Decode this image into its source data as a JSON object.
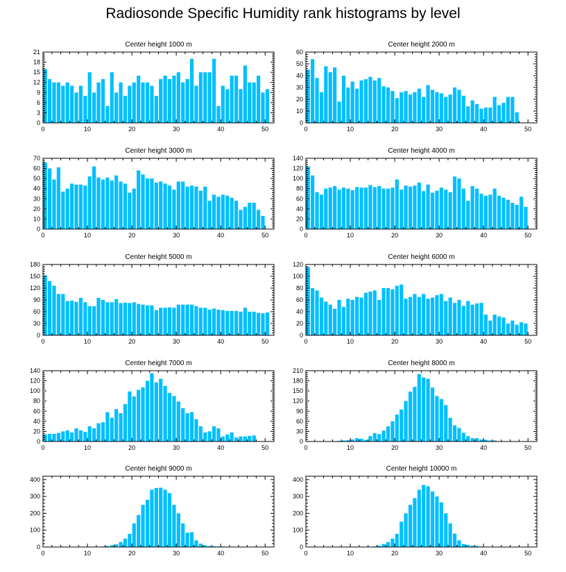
{
  "figure": {
    "title": "Radiosonde Specific Humidity rank histograms by level",
    "bar_color": "#00BFFF"
  },
  "chart_data": [
    {
      "type": "bar",
      "title": "Center height 1000 m",
      "x_start": 0,
      "xlim": [
        0,
        52
      ],
      "xticks": [
        0,
        10,
        20,
        30,
        40,
        50
      ],
      "ylim": [
        0,
        21
      ],
      "yticks": [
        0,
        3,
        6,
        9,
        12,
        15,
        18,
        21
      ],
      "values": [
        16,
        13,
        12,
        12,
        11,
        12,
        11,
        9,
        11,
        8,
        15,
        9,
        12,
        13,
        5,
        15,
        9,
        12,
        8,
        11,
        12,
        14,
        12,
        12,
        11,
        8,
        13,
        14,
        13,
        14,
        15,
        12,
        13,
        19,
        11,
        15,
        15,
        15,
        19,
        5,
        11,
        10,
        14,
        14,
        10,
        17,
        12,
        12,
        14,
        9,
        10
      ]
    },
    {
      "type": "bar",
      "title": "Center height 2000 m",
      "x_start": 0,
      "xlim": [
        0,
        52
      ],
      "xticks": [
        0,
        10,
        20,
        30,
        40,
        50
      ],
      "ylim": [
        0,
        60
      ],
      "yticks": [
        0,
        10,
        20,
        30,
        40,
        50,
        60
      ],
      "values": [
        45,
        54,
        38,
        26,
        48,
        43,
        47,
        18,
        40,
        30,
        35,
        29,
        36,
        37,
        39,
        36,
        38,
        31,
        30,
        27,
        21,
        26,
        27,
        24,
        26,
        29,
        22,
        32,
        28,
        26,
        25,
        22,
        24,
        30,
        28,
        23,
        14,
        19,
        16,
        12,
        13,
        13,
        22,
        15,
        17,
        22,
        22,
        9
      ]
    },
    {
      "type": "bar",
      "title": "Center height 3000 m",
      "x_start": 0,
      "xlim": [
        0,
        52
      ],
      "xticks": [
        0,
        10,
        20,
        30,
        40,
        50
      ],
      "ylim": [
        0,
        70
      ],
      "yticks": [
        0,
        10,
        20,
        30,
        40,
        50,
        60,
        70
      ],
      "values": [
        66,
        60,
        49,
        61,
        37,
        40,
        45,
        44,
        44,
        43,
        52,
        62,
        51,
        49,
        51,
        48,
        53,
        47,
        45,
        36,
        40,
        58,
        54,
        50,
        50,
        46,
        47,
        45,
        43,
        39,
        47,
        47,
        42,
        43,
        42,
        38,
        42,
        28,
        34,
        32,
        34,
        33,
        31,
        28,
        19,
        22,
        26,
        26,
        19,
        13
      ]
    },
    {
      "type": "bar",
      "title": "Center height 4000 m",
      "x_start": 0,
      "xlim": [
        0,
        52
      ],
      "xticks": [
        0,
        10,
        20,
        30,
        40,
        50
      ],
      "ylim": [
        0,
        140
      ],
      "yticks": [
        0,
        20,
        40,
        60,
        80,
        100,
        120,
        140
      ],
      "values": [
        124,
        106,
        73,
        68,
        80,
        82,
        85,
        78,
        82,
        80,
        77,
        83,
        82,
        82,
        87,
        83,
        85,
        80,
        80,
        82,
        98,
        78,
        86,
        84,
        86,
        92,
        75,
        88,
        72,
        76,
        82,
        78,
        73,
        104,
        100,
        80,
        56,
        85,
        80,
        70,
        66,
        68,
        80,
        66,
        62,
        58,
        52,
        48,
        64,
        44
      ]
    },
    {
      "type": "bar",
      "title": "Center height 5000 m",
      "x_start": 0,
      "xlim": [
        0,
        52
      ],
      "xticks": [
        0,
        10,
        20,
        30,
        40,
        50
      ],
      "ylim": [
        0,
        180
      ],
      "yticks": [
        0,
        30,
        60,
        90,
        120,
        150,
        180
      ],
      "values": [
        152,
        138,
        126,
        105,
        105,
        87,
        88,
        85,
        95,
        84,
        74,
        74,
        95,
        90,
        84,
        84,
        92,
        82,
        83,
        82,
        84,
        80,
        78,
        76,
        76,
        64,
        70,
        70,
        71,
        70,
        78,
        78,
        78,
        78,
        74,
        70,
        70,
        65,
        68,
        65,
        64,
        62,
        62,
        62,
        60,
        70,
        60,
        60,
        57,
        56,
        58
      ]
    },
    {
      "type": "bar",
      "title": "Center height 6000 m",
      "x_start": 0,
      "xlim": [
        0,
        52
      ],
      "xticks": [
        0,
        10,
        20,
        30,
        40,
        50
      ],
      "ylim": [
        0,
        120
      ],
      "yticks": [
        0,
        20,
        40,
        60,
        80,
        100,
        120
      ],
      "values": [
        116,
        80,
        76,
        64,
        57,
        52,
        45,
        60,
        48,
        62,
        60,
        65,
        64,
        72,
        74,
        76,
        60,
        80,
        80,
        78,
        84,
        86,
        62,
        65,
        70,
        65,
        70,
        62,
        64,
        68,
        70,
        58,
        64,
        55,
        60,
        50,
        58,
        52,
        54,
        55,
        35,
        25,
        35,
        32,
        30,
        20,
        25,
        18,
        22,
        20
      ]
    },
    {
      "type": "bar",
      "title": "Center height 7000 m",
      "x_start": 0,
      "xlim": [
        0,
        52
      ],
      "xticks": [
        0,
        10,
        20,
        30,
        40,
        50
      ],
      "ylim": [
        0,
        140
      ],
      "yticks": [
        0,
        20,
        40,
        60,
        80,
        100,
        120,
        140
      ],
      "values": [
        14,
        15,
        15,
        17,
        20,
        22,
        18,
        26,
        22,
        19,
        30,
        26,
        36,
        38,
        58,
        47,
        64,
        56,
        74,
        99,
        89,
        102,
        107,
        120,
        135,
        117,
        124,
        110,
        96,
        90,
        79,
        66,
        56,
        58,
        44,
        30,
        18,
        20,
        30,
        26,
        10,
        14,
        18,
        8,
        10,
        10,
        11,
        12
      ]
    },
    {
      "type": "bar",
      "title": "Center height 8000 m",
      "x_start": 0,
      "xlim": [
        0,
        52
      ],
      "xticks": [
        0,
        10,
        20,
        30,
        40,
        50
      ],
      "ylim": [
        0,
        210
      ],
      "yticks": [
        0,
        30,
        60,
        90,
        120,
        150,
        180,
        210
      ],
      "values": [
        0,
        0,
        0,
        0,
        0,
        1,
        1,
        2,
        3,
        4,
        6,
        10,
        8,
        5,
        16,
        25,
        22,
        32,
        45,
        60,
        80,
        95,
        120,
        148,
        162,
        200,
        190,
        186,
        160,
        135,
        126,
        108,
        70,
        48,
        40,
        26,
        16,
        10,
        10,
        6,
        5,
        3,
        3,
        1,
        1,
        0,
        0,
        0,
        0,
        0,
        0
      ]
    },
    {
      "type": "bar",
      "title": "Center height 9000 m",
      "x_start": 0,
      "xlim": [
        0,
        52
      ],
      "xticks": [
        0,
        10,
        20,
        30,
        40,
        50
      ],
      "ylim": [
        0,
        420
      ],
      "yticks": [
        0,
        100,
        200,
        300,
        400
      ],
      "values": [
        0,
        0,
        0,
        0,
        0,
        0,
        0,
        0,
        0,
        0,
        0,
        1,
        2,
        3,
        6,
        10,
        16,
        30,
        50,
        78,
        140,
        190,
        250,
        280,
        340,
        350,
        352,
        340,
        320,
        250,
        200,
        140,
        85,
        88,
        40,
        20,
        10,
        6,
        5,
        3,
        3,
        2,
        1,
        1,
        0,
        0,
        0,
        0,
        0,
        0,
        0
      ]
    },
    {
      "type": "bar",
      "title": "Center height 10000 m",
      "x_start": 0,
      "xlim": [
        0,
        52
      ],
      "xticks": [
        0,
        10,
        20,
        30,
        40,
        50
      ],
      "ylim": [
        0,
        420
      ],
      "yticks": [
        0,
        100,
        200,
        300,
        400
      ],
      "values": [
        0,
        0,
        0,
        0,
        0,
        0,
        0,
        0,
        0,
        0,
        0,
        0,
        0,
        1,
        2,
        4,
        8,
        18,
        30,
        50,
        78,
        150,
        200,
        250,
        290,
        340,
        368,
        360,
        330,
        300,
        265,
        200,
        140,
        80,
        40,
        18,
        12,
        8,
        6,
        3,
        2,
        2,
        1,
        1,
        0,
        0,
        0,
        0,
        0,
        0,
        0
      ]
    }
  ]
}
